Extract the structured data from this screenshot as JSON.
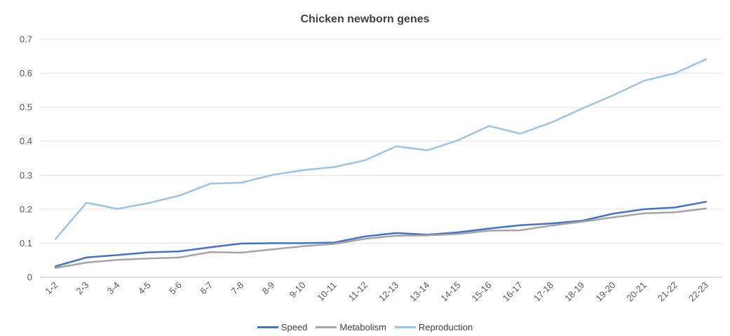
{
  "chart_data": {
    "type": "line",
    "title": "Chicken newborn genes",
    "categories": [
      "1-2",
      "2-3",
      "3-4",
      "4-5",
      "5-6",
      "6-7",
      "7-8",
      "8-9",
      "9-10",
      "10-11",
      "11-12",
      "12-13",
      "13-14",
      "14-15",
      "15-16",
      "16-17",
      "17-18",
      "18-19",
      "19-20",
      "20-21",
      "21-22",
      "22-23"
    ],
    "ylim": [
      0,
      0.7
    ],
    "yticks": [
      0,
      0.1,
      0.2,
      0.3,
      0.4,
      0.5,
      0.6,
      0.7
    ],
    "ytick_labels": [
      "0",
      "0.1",
      "0.2",
      "0.3",
      "0.4",
      "0.5",
      "0.6",
      "0.7"
    ],
    "grid": "horizontal",
    "legend_position": "bottom",
    "series": [
      {
        "name": "Speed",
        "color": "#4472C4",
        "values": [
          0.032,
          0.058,
          0.065,
          0.073,
          0.076,
          0.088,
          0.099,
          0.1,
          0.1,
          0.102,
          0.12,
          0.13,
          0.125,
          0.132,
          0.143,
          0.153,
          0.158,
          0.166,
          0.187,
          0.2,
          0.205,
          0.222
        ]
      },
      {
        "name": "Metabolism",
        "color": "#A5A5A5",
        "values": [
          0.027,
          0.043,
          0.051,
          0.055,
          0.058,
          0.074,
          0.072,
          0.082,
          0.091,
          0.098,
          0.113,
          0.122,
          0.123,
          0.127,
          0.137,
          0.138,
          0.152,
          0.163,
          0.176,
          0.188,
          0.191,
          0.202
        ]
      },
      {
        "name": "Reproduction",
        "color": "#9DC3E6",
        "values": [
          0.112,
          0.219,
          0.201,
          0.218,
          0.24,
          0.275,
          0.278,
          0.301,
          0.315,
          0.324,
          0.344,
          0.385,
          0.373,
          0.403,
          0.445,
          0.422,
          0.455,
          0.496,
          0.535,
          0.578,
          0.6,
          0.641
        ]
      }
    ]
  }
}
